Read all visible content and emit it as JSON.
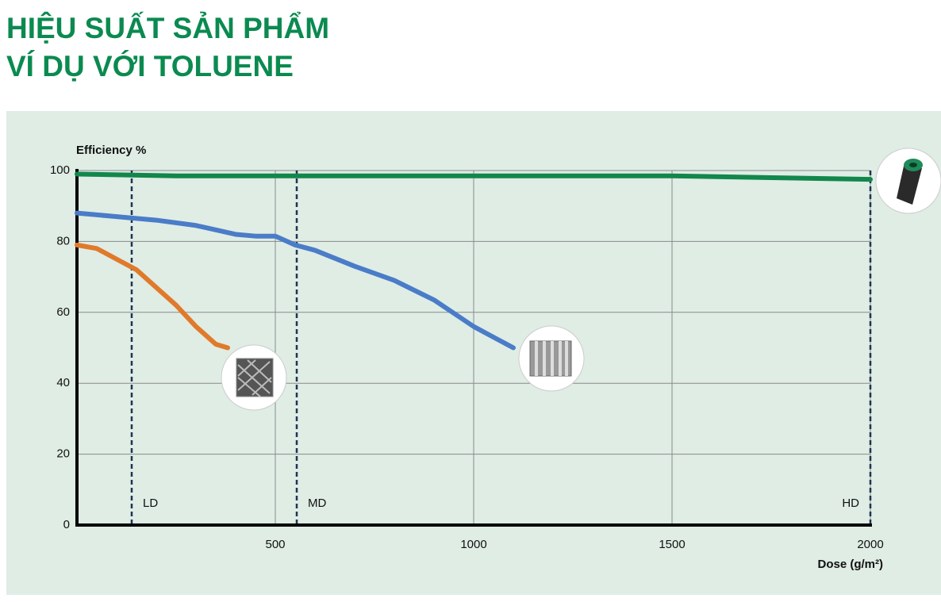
{
  "chart_data": {
    "type": "line",
    "title": "HIỆU SUẤT SẢN PHẨM",
    "subtitle": "VÍ DỤ VỚI TOLUENE",
    "y_label": "Efficiency %",
    "x_label": "Dose (g/m²)",
    "xlim": [
      0,
      2000
    ],
    "xticks": [
      500,
      1000,
      1500,
      2000
    ],
    "ylim": [
      0,
      100
    ],
    "yticks": [
      0,
      20,
      40,
      60,
      80,
      100
    ],
    "grid": true,
    "vlines": [
      {
        "value": 138,
        "label": "LD"
      },
      {
        "value": 554,
        "label": "MD"
      },
      {
        "value": 2000,
        "label": "HD"
      }
    ],
    "series": [
      {
        "color": "#12874b",
        "x": [
          0,
          250,
          500,
          750,
          1000,
          1250,
          1500,
          1750,
          2000
        ],
        "values": [
          99,
          98.5,
          98.5,
          98.5,
          98.5,
          98.5,
          98.5,
          98,
          97.5
        ]
      },
      {
        "color": "#4a7cc8",
        "x": [
          0,
          100,
          200,
          300,
          400,
          450,
          500,
          550,
          600,
          700,
          800,
          900,
          1000,
          1050,
          1100
        ],
        "values": [
          88,
          87,
          86,
          84.5,
          82,
          81.5,
          81.5,
          79,
          77.5,
          73,
          69,
          63.5,
          56,
          53,
          50
        ]
      },
      {
        "color": "#e07a2a",
        "x": [
          0,
          50,
          100,
          150,
          200,
          250,
          300,
          350,
          380
        ],
        "values": [
          79,
          78,
          75,
          72,
          67,
          62,
          56,
          51,
          50
        ]
      }
    ]
  }
}
